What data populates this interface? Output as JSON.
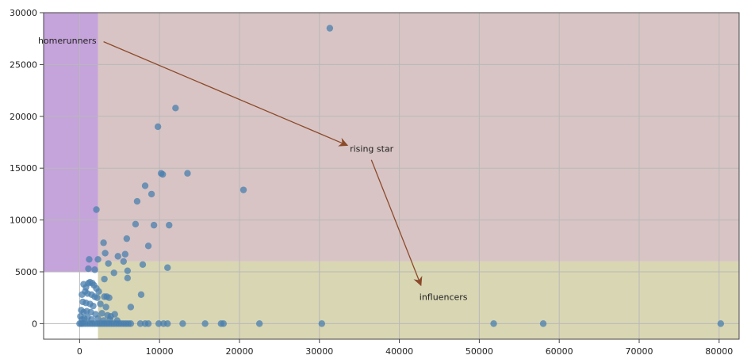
{
  "chart_data": {
    "type": "scatter",
    "title": "",
    "xlabel": "",
    "ylabel": "",
    "xlim": [
      -4500,
      82500
    ],
    "ylim": [
      -1500,
      30000
    ],
    "x_ticks": [
      0,
      10000,
      20000,
      30000,
      40000,
      50000,
      60000,
      70000,
      80000
    ],
    "y_ticks": [
      0,
      5000,
      10000,
      15000,
      20000,
      25000,
      30000
    ],
    "grid": true,
    "colors": {
      "points": "#4a7fae",
      "region_homerunners": "#c5a3db",
      "region_rising_star": "#d8c4c4",
      "region_influencers": "#d9d6b4",
      "annotation_arrow": "#8b4a2b",
      "grid": "#b9b9b9"
    },
    "regions": [
      {
        "name": "homerunners",
        "x": [
          -4500,
          2300
        ],
        "y": [
          5000,
          30000
        ]
      },
      {
        "name": "rising star",
        "x": [
          2300,
          82500
        ],
        "y": [
          6000,
          30000
        ]
      },
      {
        "name": "influencers",
        "x": [
          2300,
          82500
        ],
        "y": [
          -1500,
          6000
        ]
      }
    ],
    "annotations": [
      {
        "text": "homerunners",
        "x": -5200,
        "y": 27000,
        "arrow_from": [
          3000,
          27200
        ],
        "arrow_to": [
          33500,
          17200
        ]
      },
      {
        "text": "rising star",
        "x": 33800,
        "y": 16600,
        "arrow_from": [
          36500,
          15800
        ],
        "arrow_to": [
          42700,
          3700
        ]
      },
      {
        "text": "influencers",
        "x": 42500,
        "y": 2300
      }
    ],
    "series": [
      {
        "values": [
          [
            31300,
            28500
          ],
          [
            12000,
            20800
          ],
          [
            9800,
            19000
          ],
          [
            10200,
            14500
          ],
          [
            10400,
            14400
          ],
          [
            13500,
            14500
          ],
          [
            8200,
            13300
          ],
          [
            9000,
            12500
          ],
          [
            20500,
            12900
          ],
          [
            7200,
            11800
          ],
          [
            2100,
            11000
          ],
          [
            7000,
            9600
          ],
          [
            9300,
            9500
          ],
          [
            11200,
            9500
          ],
          [
            5900,
            8200
          ],
          [
            8600,
            7500
          ],
          [
            3000,
            7800
          ],
          [
            5700,
            6700
          ],
          [
            3200,
            6800
          ],
          [
            4800,
            6500
          ],
          [
            5500,
            6000
          ],
          [
            1200,
            6200
          ],
          [
            2300,
            6200
          ],
          [
            3600,
            5800
          ],
          [
            7900,
            5700
          ],
          [
            11000,
            5400
          ],
          [
            1100,
            5300
          ],
          [
            1900,
            5200
          ],
          [
            6000,
            5100
          ],
          [
            4300,
            4900
          ],
          [
            6000,
            4400
          ],
          [
            3100,
            4300
          ],
          [
            500,
            3800
          ],
          [
            800,
            3500
          ],
          [
            1100,
            3900
          ],
          [
            1300,
            4000
          ],
          [
            1600,
            3900
          ],
          [
            1800,
            3700
          ],
          [
            2100,
            3400
          ],
          [
            2400,
            3100
          ],
          [
            700,
            3100
          ],
          [
            1000,
            2900
          ],
          [
            1500,
            2800
          ],
          [
            300,
            2800
          ],
          [
            1900,
            2600
          ],
          [
            2200,
            2500
          ],
          [
            3100,
            2600
          ],
          [
            3400,
            2600
          ],
          [
            3700,
            2500
          ],
          [
            7700,
            2800
          ],
          [
            400,
            2100
          ],
          [
            800,
            2000
          ],
          [
            1300,
            1900
          ],
          [
            1700,
            1700
          ],
          [
            2600,
            1900
          ],
          [
            3300,
            1600
          ],
          [
            6400,
            1600
          ],
          [
            200,
            1300
          ],
          [
            500,
            1100
          ],
          [
            900,
            1200
          ],
          [
            1400,
            1100
          ],
          [
            2000,
            900
          ],
          [
            2800,
            1000
          ],
          [
            3500,
            800
          ],
          [
            3900,
            700
          ],
          [
            4400,
            900
          ],
          [
            100,
            700
          ],
          [
            300,
            400
          ],
          [
            600,
            500
          ],
          [
            1000,
            600
          ],
          [
            1500,
            400
          ],
          [
            2300,
            500
          ],
          [
            3000,
            300
          ],
          [
            3800,
            400
          ],
          [
            4700,
            300
          ],
          [
            0,
            0
          ],
          [
            200,
            0
          ],
          [
            400,
            0
          ],
          [
            700,
            0
          ],
          [
            1000,
            0
          ],
          [
            1300,
            0
          ],
          [
            1600,
            0
          ],
          [
            1900,
            0
          ],
          [
            2200,
            0
          ],
          [
            2500,
            0
          ],
          [
            2800,
            0
          ],
          [
            3100,
            0
          ],
          [
            3400,
            0
          ],
          [
            3700,
            0
          ],
          [
            4000,
            0
          ],
          [
            4300,
            0
          ],
          [
            4600,
            0
          ],
          [
            4900,
            0
          ],
          [
            5200,
            0
          ],
          [
            5500,
            0
          ],
          [
            5800,
            0
          ],
          [
            6100,
            0
          ],
          [
            6400,
            0
          ],
          [
            7600,
            0
          ],
          [
            8200,
            0
          ],
          [
            8600,
            0
          ],
          [
            9900,
            0
          ],
          [
            10500,
            0
          ],
          [
            11000,
            0
          ],
          [
            12900,
            0
          ],
          [
            15700,
            0
          ],
          [
            17700,
            0
          ],
          [
            18000,
            0
          ],
          [
            22500,
            0
          ],
          [
            30300,
            0
          ],
          [
            51800,
            0
          ],
          [
            58000,
            0
          ],
          [
            80200,
            0
          ]
        ]
      }
    ]
  }
}
